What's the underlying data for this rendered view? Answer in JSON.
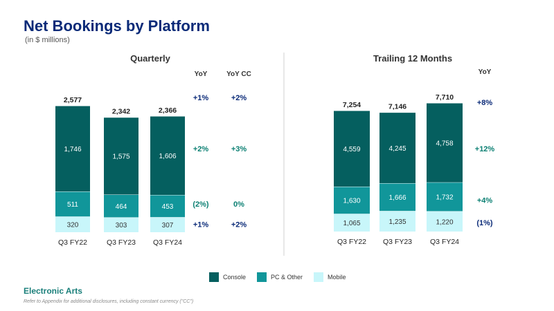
{
  "header": {
    "title": "Net Bookings by Platform",
    "subtitle": "(in $ millions)"
  },
  "legend": {
    "console": "Console",
    "pc": "PC & Other",
    "mobile": "Mobile"
  },
  "colors": {
    "console": "#055f5f",
    "pc": "#11969a",
    "mobile": "#c8f6fa",
    "title": "#0a2a78",
    "positive": "#0a7f72",
    "divider": "#d0d0d0"
  },
  "footer": {
    "brand": "Electronic Arts",
    "note": "Refer to Appendix for additional disclosures, including constant currency (\"CC\")"
  },
  "chart_data": [
    {
      "type": "bar",
      "stacked": true,
      "title": "Quarterly",
      "categories": [
        "Q3 FY22",
        "Q3 FY23",
        "Q3 FY24"
      ],
      "series": [
        {
          "name": "Mobile",
          "values": [
            320,
            303,
            307
          ],
          "labels": [
            "320",
            "303",
            "307"
          ]
        },
        {
          "name": "PC & Other",
          "values": [
            511,
            464,
            453
          ],
          "labels": [
            "511",
            "464",
            "453"
          ]
        },
        {
          "name": "Console",
          "values": [
            1746,
            1575,
            1606
          ],
          "labels": [
            "1,746",
            "1,575",
            "1,606"
          ]
        }
      ],
      "totals": [
        2577,
        2342,
        2366
      ],
      "total_labels": [
        "2,577",
        "2,342",
        "2,366"
      ],
      "yoy_headers": [
        "YoY",
        "YoY CC"
      ],
      "yoy": {
        "total": [
          "+1%",
          "+2%"
        ],
        "Console": [
          "+2%",
          "+3%"
        ],
        "PC & Other": [
          "(2%)",
          "0%"
        ],
        "Mobile": [
          "+1%",
          "+2%"
        ]
      }
    },
    {
      "type": "bar",
      "stacked": true,
      "title": "Trailing 12 Months",
      "categories": [
        "Q3 FY22",
        "Q3 FY23",
        "Q3 FY24"
      ],
      "series": [
        {
          "name": "Mobile",
          "values": [
            1065,
            1235,
            1220
          ],
          "labels": [
            "1,065",
            "1,235",
            "1,220"
          ]
        },
        {
          "name": "PC & Other",
          "values": [
            1630,
            1666,
            1732
          ],
          "labels": [
            "1,630",
            "1,666",
            "1,732"
          ]
        },
        {
          "name": "Console",
          "values": [
            4559,
            4245,
            4758
          ],
          "labels": [
            "4,559",
            "4,245",
            "4,758"
          ]
        }
      ],
      "totals": [
        7254,
        7146,
        7710
      ],
      "total_labels": [
        "7,254",
        "7,146",
        "7,710"
      ],
      "yoy_headers": [
        "YoY"
      ],
      "yoy": {
        "total": [
          "+8%"
        ],
        "Console": [
          "+12%"
        ],
        "PC & Other": [
          "+4%"
        ],
        "Mobile": [
          "(1%)"
        ]
      }
    }
  ]
}
